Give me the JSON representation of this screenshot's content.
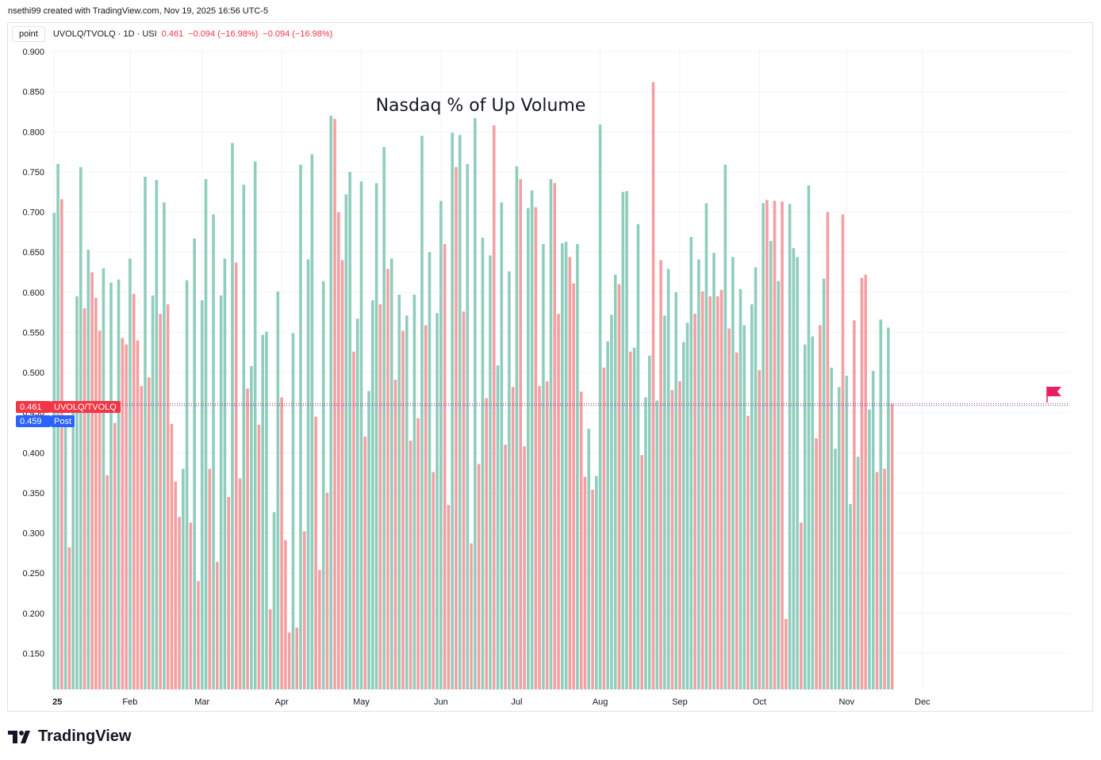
{
  "header": {
    "credit": "nsethi99 created with TradingView.com, Nov 19, 2025 16:56 UTC-5",
    "point_button": "point",
    "symbol": "UVOLQ/TVOLQ · 1D · USI",
    "last": "0.461",
    "change": "−0.094 (−16.98%)",
    "change2": "−0.094 (−16.98%)"
  },
  "branding": {
    "name": "TradingView"
  },
  "price_labels": {
    "last_value": "0.461",
    "last_name": "UVOLQ/TVOLQ",
    "post_value": "0.459",
    "post_name": "Post"
  },
  "colors": {
    "up": "#8fcdbd",
    "down": "#f49fa2",
    "last": "#f23645",
    "post": "#2962ff",
    "flag": "#e91e63"
  },
  "chart_data": {
    "type": "bar",
    "title": "Nasdaq % of Up Volume",
    "ylim": [
      0.105,
      0.905
    ],
    "y_ticks": [
      "0.900",
      "0.850",
      "0.800",
      "0.750",
      "0.700",
      "0.650",
      "0.600",
      "0.550",
      "0.500",
      "0.450",
      "0.400",
      "0.350",
      "0.300",
      "0.250",
      "0.200",
      "0.150"
    ],
    "x_labels": [
      {
        "label": "25",
        "bar": 0
      },
      {
        "label": "Feb",
        "bar": 20
      },
      {
        "label": "Mar",
        "bar": 39
      },
      {
        "label": "Apr",
        "bar": 60
      },
      {
        "label": "May",
        "bar": 81
      },
      {
        "label": "Jun",
        "bar": 102
      },
      {
        "label": "Jul",
        "bar": 122
      },
      {
        "label": "Aug",
        "bar": 144
      },
      {
        "label": "Sep",
        "bar": 165
      },
      {
        "label": "Oct",
        "bar": 186
      },
      {
        "label": "Nov",
        "bar": 209
      },
      {
        "label": "Dec",
        "bar": 229
      }
    ],
    "grid": true,
    "series": [
      {
        "values": [
          0.699,
          0.76,
          0.716,
          0.44,
          0.282,
          0.45,
          0.595,
          0.756,
          0.58,
          0.653,
          0.625,
          0.593,
          0.552,
          0.63,
          0.372,
          0.612,
          0.437,
          0.616,
          0.543,
          0.535,
          0.642,
          0.598,
          0.54,
          0.483,
          0.744,
          0.494,
          0.596,
          0.74,
          0.573,
          0.712,
          0.585,
          0.436,
          0.364,
          0.32,
          0.38,
          0.615,
          0.313,
          0.667,
          0.24,
          0.59,
          0.741,
          0.38,
          0.697,
          0.264,
          0.596,
          0.642,
          0.345,
          0.786,
          0.637,
          0.368,
          0.734,
          0.48,
          0.508,
          0.763,
          0.435,
          0.547,
          0.551,
          0.205,
          0.326,
          0.601,
          0.469,
          0.291,
          0.176,
          0.549,
          0.182,
          0.759,
          0.302,
          0.641,
          0.772,
          0.445,
          0.254,
          0.614,
          0.35,
          0.82,
          0.816,
          0.7,
          0.64,
          0.722,
          0.75,
          0.526,
          0.567,
          0.738,
          0.42,
          0.477,
          0.59,
          0.736,
          0.585,
          0.781,
          0.629,
          0.642,
          0.491,
          0.597,
          0.552,
          0.571,
          0.415,
          0.597,
          0.443,
          0.795,
          0.559,
          0.65,
          0.376,
          0.574,
          0.714,
          0.66,
          0.335,
          0.799,
          0.756,
          0.796,
          0.576,
          0.76,
          0.287,
          0.817,
          0.386,
          0.668,
          0.468,
          0.646,
          0.808,
          0.509,
          0.712,
          0.41,
          0.626,
          0.482,
          0.757,
          0.741,
          0.408,
          0.705,
          0.727,
          0.706,
          0.483,
          0.66,
          0.489,
          0.741,
          0.736,
          0.573,
          0.661,
          0.663,
          0.644,
          0.611,
          0.66,
          0.476,
          0.37,
          0.43,
          0.354,
          0.371,
          0.809,
          0.506,
          0.539,
          0.572,
          0.622,
          0.61,
          0.725,
          0.726,
          0.526,
          0.531,
          0.685,
          0.397,
          0.469,
          0.521,
          0.862,
          0.465,
          0.64,
          0.571,
          0.629,
          0.478,
          0.6,
          0.489,
          0.538,
          0.562,
          0.669,
          0.573,
          0.641,
          0.601,
          0.711,
          0.595,
          0.649,
          0.595,
          0.603,
          0.759,
          0.555,
          0.644,
          0.525,
          0.604,
          0.559,
          0.446,
          0.585,
          0.631,
          0.503,
          0.711,
          0.715,
          0.664,
          0.714,
          0.614,
          0.713,
          0.193,
          0.71,
          0.655,
          0.644,
          0.313,
          0.535,
          0.733,
          0.545,
          0.418,
          0.559,
          0.617,
          0.7,
          0.506,
          0.405,
          0.482,
          0.697,
          0.496,
          0.336,
          0.565,
          0.395,
          0.618,
          0.622,
          0.454,
          0.502,
          0.376,
          0.566,
          0.38,
          0.556,
          0.461
        ],
        "colors": [
          "up",
          "up",
          "down",
          "up",
          "down",
          "up",
          "up",
          "up",
          "down",
          "up",
          "down",
          "down",
          "down",
          "up",
          "down",
          "up",
          "down",
          "up",
          "down",
          "down",
          "up",
          "down",
          "down",
          "down",
          "up",
          "down",
          "up",
          "up",
          "down",
          "up",
          "down",
          "down",
          "down",
          "down",
          "up",
          "up",
          "down",
          "up",
          "down",
          "up",
          "up",
          "down",
          "up",
          "down",
          "up",
          "up",
          "down",
          "up",
          "down",
          "down",
          "up",
          "down",
          "up",
          "up",
          "down",
          "up",
          "up",
          "down",
          "up",
          "up",
          "down",
          "down",
          "down",
          "up",
          "down",
          "up",
          "down",
          "up",
          "up",
          "down",
          "down",
          "up",
          "down",
          "up",
          "down",
          "down",
          "down",
          "up",
          "up",
          "down",
          "up",
          "up",
          "down",
          "up",
          "up",
          "up",
          "down",
          "up",
          "down",
          "up",
          "down",
          "up",
          "down",
          "up",
          "down",
          "up",
          "down",
          "up",
          "down",
          "up",
          "down",
          "up",
          "up",
          "down",
          "down",
          "up",
          "down",
          "up",
          "down",
          "up",
          "down",
          "up",
          "down",
          "up",
          "down",
          "up",
          "down",
          "up",
          "up",
          "down",
          "up",
          "down",
          "up",
          "down",
          "down",
          "up",
          "up",
          "down",
          "down",
          "up",
          "down",
          "up",
          "down",
          "down",
          "up",
          "up",
          "down",
          "down",
          "up",
          "down",
          "down",
          "up",
          "down",
          "up",
          "up",
          "down",
          "up",
          "up",
          "up",
          "down",
          "up",
          "up",
          "down",
          "up",
          "up",
          "down",
          "up",
          "up",
          "down",
          "up",
          "down",
          "up",
          "up",
          "down",
          "up",
          "down",
          "up",
          "up",
          "up",
          "down",
          "up",
          "down",
          "up",
          "down",
          "up",
          "down",
          "down",
          "up",
          "down",
          "up",
          "down",
          "up",
          "up",
          "down",
          "up",
          "up",
          "down",
          "up",
          "down",
          "up",
          "down",
          "up",
          "down",
          "down",
          "up",
          "up",
          "up",
          "down",
          "up",
          "up",
          "up",
          "down",
          "down",
          "up",
          "down",
          "up",
          "up",
          "up",
          "down",
          "up",
          "up",
          "down",
          "up",
          "down",
          "down",
          "up",
          "up",
          "down",
          "up",
          "down",
          "up",
          "down",
          "down"
        ]
      }
    ]
  }
}
